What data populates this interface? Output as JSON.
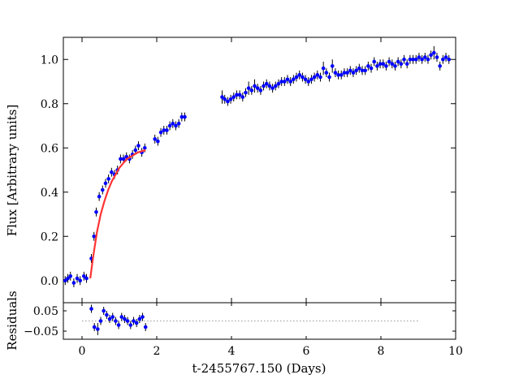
{
  "chart_data": {
    "type": "scatter",
    "xlabel": "t-2455767.150 (Days)",
    "xlim": [
      -0.5,
      10
    ],
    "xticks": [
      "0",
      "2",
      "4",
      "6",
      "8",
      "10"
    ],
    "panels": [
      {
        "id": "main",
        "ylabel": "Flux [Arbitrary units]",
        "ylim": [
          -0.1,
          1.1
        ],
        "yticks": [
          "0.0",
          "0.2",
          "0.4",
          "0.6",
          "0.8",
          "1.0"
        ],
        "grid": false,
        "series": [
          {
            "kind": "errorbar",
            "color": "#0000ff",
            "x": [
              -0.45,
              -0.38,
              -0.31,
              -0.22,
              -0.13,
              -0.05,
              0.05,
              0.12,
              0.25,
              0.32,
              0.38,
              0.46,
              0.55,
              0.63,
              0.71,
              0.79,
              0.87,
              0.95,
              1.03,
              1.11,
              1.19,
              1.27,
              1.35,
              1.43,
              1.51,
              1.6,
              1.68,
              1.95,
              2.03,
              2.11,
              2.19,
              2.27,
              2.35,
              2.43,
              2.51,
              2.59,
              2.67,
              2.75,
              3.75,
              3.82,
              3.9,
              3.98,
              4.06,
              4.14,
              4.22,
              4.3,
              4.38,
              4.46,
              4.54,
              4.62,
              4.7,
              4.78,
              4.86,
              4.94,
              5.02,
              5.1,
              5.18,
              5.26,
              5.34,
              5.42,
              5.5,
              5.58,
              5.66,
              5.74,
              5.82,
              5.9,
              5.98,
              6.06,
              6.14,
              6.22,
              6.3,
              6.38,
              6.46,
              6.54,
              6.62,
              6.7,
              6.78,
              6.86,
              6.94,
              7.02,
              7.1,
              7.18,
              7.26,
              7.34,
              7.42,
              7.5,
              7.58,
              7.66,
              7.74,
              7.82,
              7.9,
              7.98,
              8.06,
              8.14,
              8.22,
              8.3,
              8.38,
              8.46,
              8.54,
              8.62,
              8.7,
              8.78,
              8.86,
              8.94,
              9.02,
              9.1,
              9.18,
              9.26,
              9.34,
              9.42,
              9.5,
              9.58,
              9.66,
              9.74,
              9.82
            ],
            "y": [
              0.0,
              0.01,
              0.02,
              -0.01,
              0.01,
              0.0,
              0.02,
              0.01,
              0.1,
              0.2,
              0.31,
              0.38,
              0.41,
              0.44,
              0.46,
              0.49,
              0.48,
              0.5,
              0.55,
              0.55,
              0.56,
              0.55,
              0.57,
              0.59,
              0.61,
              0.58,
              0.6,
              0.64,
              0.63,
              0.67,
              0.68,
              0.68,
              0.7,
              0.71,
              0.7,
              0.71,
              0.74,
              0.74,
              0.83,
              0.82,
              0.81,
              0.82,
              0.83,
              0.84,
              0.84,
              0.83,
              0.85,
              0.87,
              0.86,
              0.88,
              0.87,
              0.86,
              0.88,
              0.89,
              0.88,
              0.87,
              0.88,
              0.89,
              0.9,
              0.9,
              0.91,
              0.9,
              0.91,
              0.92,
              0.93,
              0.92,
              0.91,
              0.9,
              0.91,
              0.92,
              0.93,
              0.92,
              0.96,
              0.94,
              0.92,
              0.97,
              0.94,
              0.93,
              0.93,
              0.94,
              0.94,
              0.95,
              0.94,
              0.95,
              0.96,
              0.95,
              0.95,
              0.97,
              0.96,
              0.99,
              0.97,
              0.98,
              0.98,
              0.97,
              0.99,
              0.98,
              0.97,
              0.99,
              0.98,
              1.0,
              0.98,
              1.0,
              1.0,
              1.0,
              1.01,
              1.0,
              1.01,
              1.0,
              1.02,
              1.03,
              1.01,
              0.97,
              1.0,
              1.01,
              1.0
            ],
            "yerr": [
              0.02,
              0.02,
              0.02,
              0.02,
              0.02,
              0.02,
              0.02,
              0.02,
              0.02,
              0.02,
              0.02,
              0.02,
              0.02,
              0.02,
              0.02,
              0.02,
              0.02,
              0.02,
              0.02,
              0.02,
              0.02,
              0.02,
              0.02,
              0.02,
              0.02,
              0.02,
              0.02,
              0.02,
              0.02,
              0.02,
              0.02,
              0.02,
              0.02,
              0.02,
              0.02,
              0.02,
              0.02,
              0.02,
              0.03,
              0.02,
              0.02,
              0.02,
              0.02,
              0.02,
              0.02,
              0.02,
              0.02,
              0.03,
              0.02,
              0.03,
              0.02,
              0.02,
              0.02,
              0.02,
              0.02,
              0.02,
              0.02,
              0.02,
              0.02,
              0.02,
              0.02,
              0.02,
              0.02,
              0.02,
              0.02,
              0.02,
              0.02,
              0.02,
              0.02,
              0.02,
              0.02,
              0.02,
              0.03,
              0.02,
              0.02,
              0.03,
              0.02,
              0.02,
              0.02,
              0.02,
              0.02,
              0.02,
              0.02,
              0.02,
              0.02,
              0.02,
              0.02,
              0.02,
              0.02,
              0.02,
              0.02,
              0.02,
              0.02,
              0.02,
              0.02,
              0.02,
              0.02,
              0.02,
              0.02,
              0.02,
              0.02,
              0.02,
              0.02,
              0.02,
              0.02,
              0.02,
              0.02,
              0.02,
              0.02,
              0.03,
              0.02,
              0.02,
              0.02,
              0.02,
              0.02
            ]
          },
          {
            "kind": "fit-curve",
            "color": "#ff3333",
            "x": [
              0.22,
              0.3,
              0.4,
              0.5,
              0.6,
              0.7,
              0.8,
              0.9,
              1.0,
              1.1,
              1.2,
              1.3,
              1.4,
              1.5,
              1.6,
              1.7
            ],
            "y": [
              0.01,
              0.11,
              0.22,
              0.3,
              0.36,
              0.41,
              0.45,
              0.48,
              0.51,
              0.53,
              0.55,
              0.56,
              0.57,
              0.58,
              0.585,
              0.59
            ]
          }
        ]
      },
      {
        "id": "residuals",
        "ylabel": "Residuals",
        "ylim": [
          -0.09,
          0.09
        ],
        "yticks": [
          "0.05",
          "−0.05"
        ],
        "ytick_values": [
          0.05,
          -0.05
        ],
        "zero_line": {
          "style": "dotted",
          "color": "#999999",
          "xrange": [
            0.0,
            9.0
          ]
        },
        "series": [
          {
            "kind": "errorbar",
            "color": "#0000ff",
            "x": [
              0.25,
              0.33,
              0.42,
              0.5,
              0.58,
              0.66,
              0.74,
              0.82,
              0.9,
              0.98,
              1.06,
              1.14,
              1.22,
              1.3,
              1.38,
              1.46,
              1.54,
              1.62,
              1.7
            ],
            "y": [
              0.06,
              -0.03,
              -0.04,
              0.0,
              0.05,
              0.03,
              0.01,
              0.02,
              0.0,
              -0.02,
              0.02,
              0.01,
              0.0,
              -0.02,
              0.0,
              -0.01,
              0.01,
              0.02,
              -0.03
            ],
            "yerr": [
              0.02,
              0.02,
              0.03,
              0.02,
              0.02,
              0.02,
              0.02,
              0.02,
              0.02,
              0.02,
              0.02,
              0.02,
              0.02,
              0.02,
              0.02,
              0.02,
              0.02,
              0.02,
              0.02
            ]
          }
        ]
      }
    ]
  }
}
